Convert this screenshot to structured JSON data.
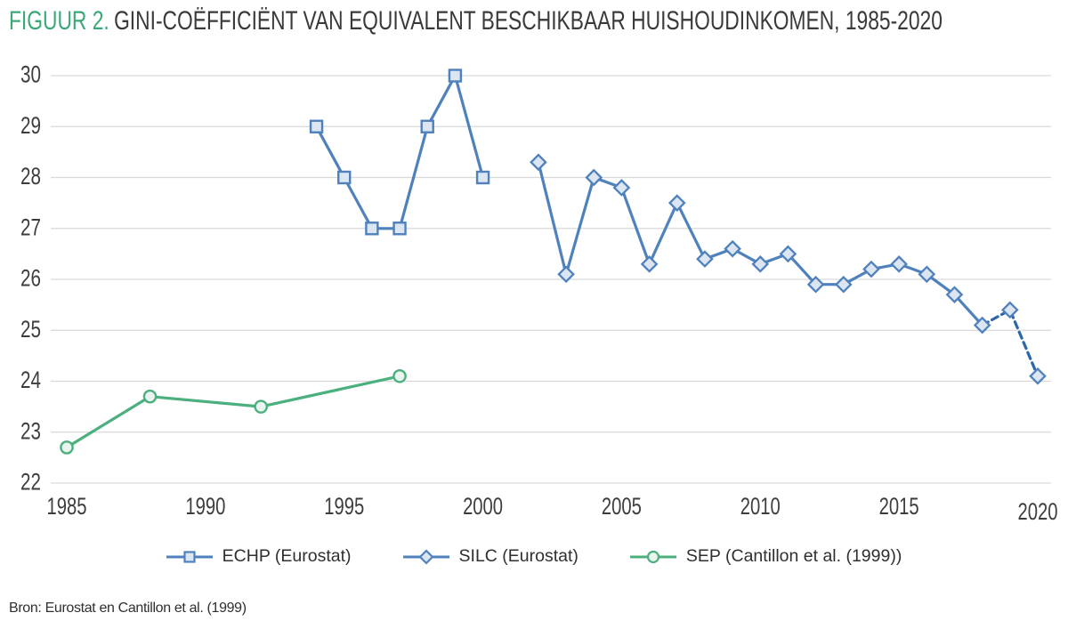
{
  "figure": {
    "label": "FIGUUR 2.",
    "title": "GINI-COËFFICIËNT VAN EQUIVALENT BESCHIKBAAR HUISHOUDINKOMEN, 1985-2020"
  },
  "source": "Bron: Eurostat en Cantillon et al. (1999)",
  "colors": {
    "accent_green": "#3BA877",
    "title_text": "#3a3a3a",
    "tick_text": "#3d3d3d",
    "grid": "#D9D9D9",
    "blue": "#4F81BD",
    "blue_dash": "#2B67AE",
    "blue_fill": "#DCE6F2",
    "green": "#4BB07D",
    "green_fill": "#E9F5EE"
  },
  "chart_data": {
    "type": "line",
    "title": "Gini-coëfficiënt van equivalent beschikbaar huishoudinkomen, 1985-2020",
    "xlabel": "",
    "ylabel": "",
    "xlim": [
      1984.4,
      2020.5
    ],
    "ylim": [
      22,
      30
    ],
    "grid": true,
    "legend_position": "bottom",
    "x_ticks": [
      1985,
      1990,
      1995,
      2000,
      2005,
      2010,
      2015,
      2020
    ],
    "y_ticks": [
      22,
      23,
      24,
      25,
      26,
      27,
      28,
      29,
      30
    ],
    "series": [
      {
        "name": "ECHP (Eurostat)",
        "marker": "square",
        "color": "blue",
        "x": [
          1994,
          1995,
          1996,
          1997,
          1998,
          1999,
          2000
        ],
        "y": [
          29,
          28,
          27,
          27,
          29,
          30,
          28
        ],
        "dashed_segments": []
      },
      {
        "name": "SILC (Eurostat)",
        "marker": "diamond",
        "color": "blue",
        "x": [
          2002,
          2003,
          2004,
          2005,
          2006,
          2007,
          2008,
          2009,
          2010,
          2011,
          2012,
          2013,
          2014,
          2015,
          2016,
          2017,
          2018,
          2019,
          2020
        ],
        "y": [
          28.3,
          26.1,
          28.0,
          27.8,
          26.3,
          27.5,
          26.4,
          26.6,
          26.3,
          26.5,
          25.9,
          25.9,
          26.2,
          26.3,
          26.1,
          25.7,
          25.1,
          25.4,
          24.1
        ],
        "dashed_segments": [
          [
            2018,
            2019
          ],
          [
            2019,
            2020
          ]
        ]
      },
      {
        "name": "SEP (Cantillon et al. (1999))",
        "marker": "circle",
        "color": "green",
        "x": [
          1985,
          1988,
          1992,
          1997
        ],
        "y": [
          22.7,
          23.7,
          23.5,
          24.1
        ],
        "dashed_segments": []
      }
    ]
  }
}
